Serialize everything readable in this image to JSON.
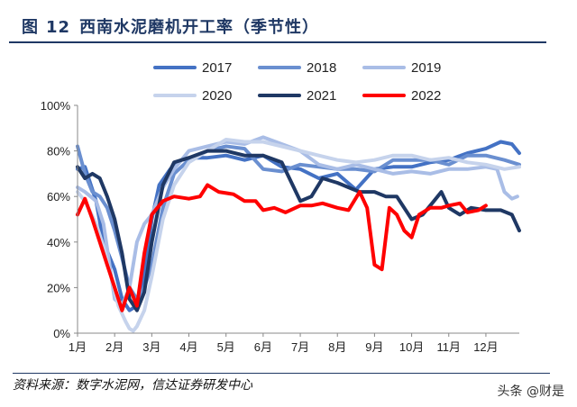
{
  "header": {
    "figure_label": "图",
    "figure_number": "12",
    "title": "西南水泥磨机开工率（季节性）"
  },
  "source_text": "资料来源：数字水泥网，信达证券研发中心",
  "watermark_text": "头条 @财是",
  "chart_data": {
    "type": "line",
    "title": "西南水泥磨机开工率（季节性）",
    "xlabel": "",
    "ylabel": "",
    "x_ticks": [
      "1月",
      "2月",
      "3月",
      "4月",
      "5月",
      "6月",
      "7月",
      "8月",
      "9月",
      "10月",
      "11月",
      "12月"
    ],
    "y_ticks": [
      "0%",
      "20%",
      "40%",
      "60%",
      "80%",
      "100%"
    ],
    "xlim": [
      1,
      12.9
    ],
    "ylim": [
      0,
      100
    ],
    "grid": false,
    "legend_position": "top",
    "series": [
      {
        "name": "2017",
        "color": "#4472c4",
        "width": 4,
        "points": [
          [
            1.0,
            72
          ],
          [
            1.2,
            73
          ],
          [
            1.5,
            58
          ],
          [
            1.7,
            40
          ],
          [
            2.0,
            28
          ],
          [
            2.2,
            15
          ],
          [
            2.4,
            10
          ],
          [
            2.6,
            12
          ],
          [
            2.8,
            25
          ],
          [
            3.0,
            50
          ],
          [
            3.2,
            65
          ],
          [
            3.5,
            72
          ],
          [
            3.8,
            76
          ],
          [
            4.2,
            77
          ],
          [
            4.5,
            77
          ],
          [
            5.0,
            78
          ],
          [
            5.5,
            76
          ],
          [
            6.0,
            78
          ],
          [
            6.5,
            73
          ],
          [
            7.0,
            72
          ],
          [
            7.5,
            68
          ],
          [
            8.0,
            70
          ],
          [
            8.5,
            63
          ],
          [
            9.0,
            72
          ],
          [
            9.5,
            73
          ],
          [
            10.0,
            73
          ],
          [
            10.5,
            75
          ],
          [
            11.0,
            76
          ],
          [
            11.5,
            79
          ],
          [
            12.0,
            81
          ],
          [
            12.4,
            84
          ],
          [
            12.7,
            83
          ],
          [
            12.9,
            79
          ]
        ]
      },
      {
        "name": "2018",
        "color": "#6a8fd0",
        "width": 4,
        "points": [
          [
            1.0,
            82
          ],
          [
            1.2,
            70
          ],
          [
            1.4,
            62
          ],
          [
            1.6,
            60
          ],
          [
            1.8,
            55
          ],
          [
            2.0,
            45
          ],
          [
            2.2,
            33
          ],
          [
            2.4,
            20
          ],
          [
            2.6,
            15
          ],
          [
            2.8,
            20
          ],
          [
            3.0,
            30
          ],
          [
            3.3,
            55
          ],
          [
            3.6,
            70
          ],
          [
            4.0,
            76
          ],
          [
            4.5,
            80
          ],
          [
            5.0,
            82
          ],
          [
            5.5,
            81
          ],
          [
            6.0,
            72
          ],
          [
            6.5,
            71
          ],
          [
            7.0,
            74
          ],
          [
            7.5,
            73
          ],
          [
            8.0,
            72
          ],
          [
            8.5,
            72
          ],
          [
            9.0,
            71
          ],
          [
            9.5,
            76
          ],
          [
            10.0,
            76
          ],
          [
            10.5,
            76
          ],
          [
            11.0,
            74
          ],
          [
            11.5,
            78
          ],
          [
            12.0,
            78
          ],
          [
            12.5,
            76
          ],
          [
            12.9,
            74
          ]
        ]
      },
      {
        "name": "2019",
        "color": "#a9bde6",
        "width": 4,
        "points": [
          [
            1.0,
            64
          ],
          [
            1.2,
            62
          ],
          [
            1.5,
            58
          ],
          [
            1.7,
            48
          ],
          [
            2.0,
            15
          ],
          [
            2.2,
            12
          ],
          [
            2.4,
            20
          ],
          [
            2.6,
            40
          ],
          [
            2.8,
            48
          ],
          [
            3.0,
            52
          ],
          [
            3.3,
            64
          ],
          [
            3.6,
            72
          ],
          [
            4.0,
            80
          ],
          [
            4.5,
            82
          ],
          [
            5.0,
            84
          ],
          [
            5.5,
            83
          ],
          [
            6.0,
            86
          ],
          [
            6.5,
            83
          ],
          [
            7.0,
            80
          ],
          [
            7.5,
            74
          ],
          [
            8.0,
            72
          ],
          [
            8.5,
            74
          ],
          [
            9.0,
            72
          ],
          [
            9.5,
            70
          ],
          [
            10.0,
            71
          ],
          [
            10.5,
            70
          ],
          [
            11.0,
            72
          ],
          [
            11.5,
            72
          ],
          [
            12.0,
            73
          ],
          [
            12.3,
            72
          ],
          [
            12.5,
            62
          ],
          [
            12.7,
            59
          ],
          [
            12.85,
            60
          ]
        ]
      },
      {
        "name": "2020",
        "color": "#c6d3ec",
        "width": 4,
        "points": [
          [
            1.0,
            62
          ],
          [
            1.2,
            58
          ],
          [
            1.5,
            48
          ],
          [
            1.7,
            38
          ],
          [
            1.9,
            25
          ],
          [
            2.1,
            12
          ],
          [
            2.3,
            5
          ],
          [
            2.4,
            2
          ],
          [
            2.5,
            1
          ],
          [
            2.6,
            3
          ],
          [
            2.8,
            10
          ],
          [
            3.0,
            25
          ],
          [
            3.3,
            50
          ],
          [
            3.6,
            65
          ],
          [
            4.0,
            75
          ],
          [
            4.5,
            80
          ],
          [
            5.0,
            85
          ],
          [
            5.5,
            84
          ],
          [
            6.0,
            84
          ],
          [
            6.5,
            82
          ],
          [
            7.0,
            80
          ],
          [
            7.5,
            78
          ],
          [
            8.0,
            76
          ],
          [
            8.5,
            75
          ],
          [
            9.0,
            76
          ],
          [
            9.5,
            78
          ],
          [
            10.0,
            78
          ],
          [
            10.5,
            76
          ],
          [
            11.0,
            77
          ],
          [
            11.5,
            75
          ],
          [
            12.0,
            74
          ],
          [
            12.5,
            72
          ],
          [
            12.9,
            73
          ]
        ]
      },
      {
        "name": "2021",
        "color": "#1f3864",
        "width": 4,
        "points": [
          [
            1.0,
            73
          ],
          [
            1.2,
            68
          ],
          [
            1.4,
            70
          ],
          [
            1.6,
            68
          ],
          [
            1.8,
            60
          ],
          [
            2.0,
            50
          ],
          [
            2.2,
            35
          ],
          [
            2.4,
            15
          ],
          [
            2.6,
            10
          ],
          [
            2.8,
            18
          ],
          [
            3.0,
            40
          ],
          [
            3.3,
            65
          ],
          [
            3.6,
            75
          ],
          [
            4.0,
            77
          ],
          [
            4.5,
            80
          ],
          [
            5.0,
            80
          ],
          [
            5.5,
            78
          ],
          [
            6.0,
            78
          ],
          [
            6.5,
            75
          ],
          [
            7.0,
            58
          ],
          [
            7.3,
            60
          ],
          [
            7.6,
            68
          ],
          [
            8.0,
            66
          ],
          [
            8.3,
            64
          ],
          [
            8.6,
            62
          ],
          [
            9.0,
            62
          ],
          [
            9.3,
            60
          ],
          [
            9.6,
            60
          ],
          [
            10.0,
            50
          ],
          [
            10.3,
            52
          ],
          [
            10.6,
            58
          ],
          [
            10.8,
            62
          ],
          [
            11.0,
            55
          ],
          [
            11.3,
            52
          ],
          [
            11.6,
            55
          ],
          [
            12.0,
            54
          ],
          [
            12.4,
            54
          ],
          [
            12.7,
            52
          ],
          [
            12.9,
            45
          ]
        ]
      },
      {
        "name": "2022",
        "color": "#ff0000",
        "width": 4,
        "points": [
          [
            1.0,
            52
          ],
          [
            1.2,
            59
          ],
          [
            1.4,
            50
          ],
          [
            1.6,
            40
          ],
          [
            1.8,
            30
          ],
          [
            2.0,
            20
          ],
          [
            2.2,
            10
          ],
          [
            2.4,
            20
          ],
          [
            2.6,
            12
          ],
          [
            2.8,
            35
          ],
          [
            3.0,
            52
          ],
          [
            3.3,
            58
          ],
          [
            3.6,
            60
          ],
          [
            4.0,
            59
          ],
          [
            4.3,
            60
          ],
          [
            4.5,
            65
          ],
          [
            4.8,
            62
          ],
          [
            5.2,
            61
          ],
          [
            5.5,
            58
          ],
          [
            5.8,
            58
          ],
          [
            6.0,
            54
          ],
          [
            6.3,
            55
          ],
          [
            6.6,
            53
          ],
          [
            7.0,
            56
          ],
          [
            7.3,
            56
          ],
          [
            7.6,
            57
          ],
          [
            8.0,
            55
          ],
          [
            8.3,
            54
          ],
          [
            8.6,
            62
          ],
          [
            8.8,
            55
          ],
          [
            9.0,
            30
          ],
          [
            9.2,
            28
          ],
          [
            9.4,
            55
          ],
          [
            9.6,
            52
          ],
          [
            9.8,
            45
          ],
          [
            10.0,
            42
          ],
          [
            10.2,
            52
          ],
          [
            10.5,
            55
          ],
          [
            10.8,
            55
          ],
          [
            11.0,
            56
          ],
          [
            11.3,
            57
          ],
          [
            11.5,
            53
          ],
          [
            11.8,
            54
          ],
          [
            12.0,
            56
          ]
        ]
      }
    ]
  }
}
